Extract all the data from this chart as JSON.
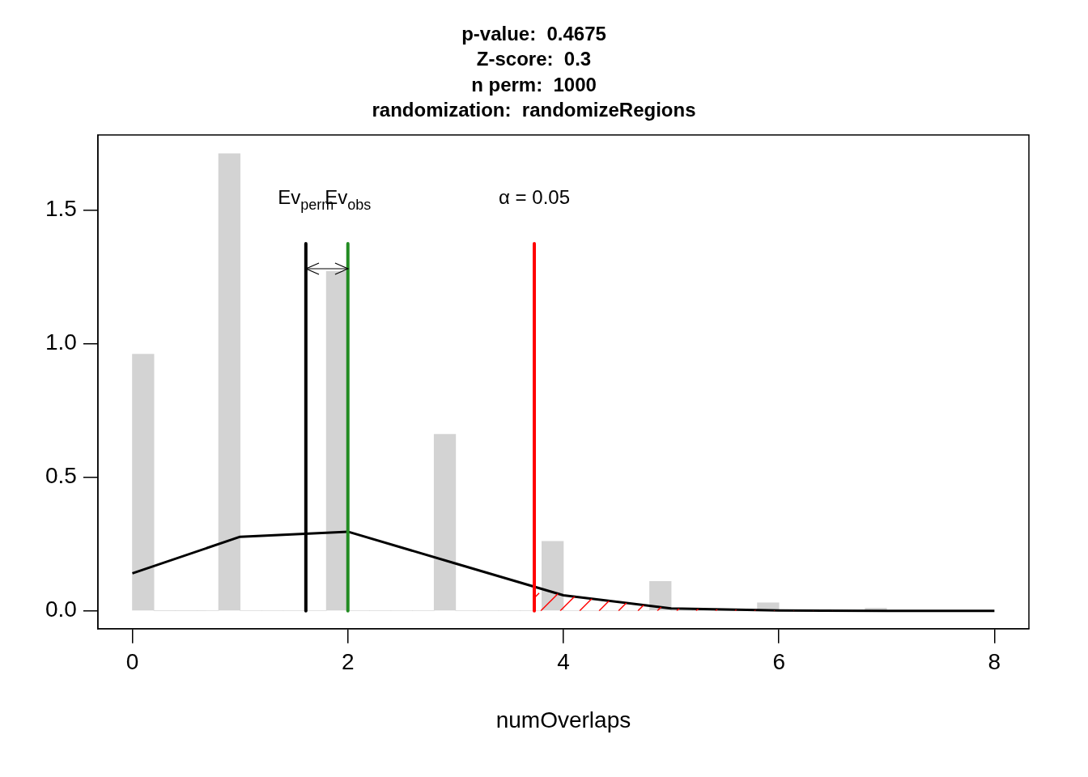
{
  "chart_data": {
    "type": "histogram",
    "title": "p-value:  0.4675\nZ-score:  0.3\nn perm:  1000\nrandomization:  randomizeRegions",
    "xlabel": "numOverlaps",
    "color": "#d3d3d3",
    "bins": [
      0,
      0.2,
      0.4,
      0.6,
      0.8,
      1.0,
      1.2,
      1.4,
      1.6,
      1.8,
      2.0,
      2.2,
      2.4,
      2.6,
      2.8,
      3.0,
      3.2,
      3.4,
      3.6,
      3.8,
      4.0,
      4.2,
      4.4,
      4.6,
      4.8,
      5.0,
      5.2,
      5.4,
      5.6,
      5.8,
      6.0,
      6.2,
      6.4,
      6.6,
      6.8,
      7.0
    ],
    "values": [
      0.96,
      0,
      0,
      0,
      1.71,
      0,
      0,
      0,
      0,
      1.27,
      0,
      0,
      0,
      0,
      0.66,
      0,
      0,
      0,
      0,
      0.26,
      0,
      0,
      0,
      0,
      0.11,
      0,
      0,
      0,
      0,
      0.03,
      0,
      0,
      0,
      0,
      0.01
    ],
    "series": [
      {
        "type": "line",
        "color": "#000000",
        "x": [
          0,
          1,
          2,
          3,
          4,
          5,
          6,
          7,
          8
        ],
        "values": [
          0.14,
          0.277,
          0.296,
          0.177,
          0.058,
          0.009,
          0.001,
          0,
          0
        ]
      }
    ],
    "ref_lines": [
      {
        "axis": "x",
        "value": 1.61,
        "label": "Ev$_{perm}$",
        "color": "#000000"
      },
      {
        "axis": "x",
        "value": 2,
        "label": "Ev$_{obs}$",
        "color": "#228b22"
      },
      {
        "axis": "x",
        "value": 3.73,
        "color": "#ff0000"
      }
    ],
    "annotations": [
      "α = 0.05"
    ],
    "xlim": [
      -0.32,
      8.32
    ],
    "ylim": [
      -0.067,
      1.78
    ],
    "xticks": [
      0,
      2,
      4,
      6,
      8
    ],
    "yticks": [
      {
        "value": 0,
        "label": "0.0"
      },
      {
        "value": 0.5,
        "label": "0.5"
      },
      {
        "value": 1,
        "label": "1.0"
      },
      {
        "value": 1.5,
        "label": "1.5"
      }
    ],
    "grid": false,
    "legend": false,
    "marker": "none",
    "line_style": "solid"
  }
}
